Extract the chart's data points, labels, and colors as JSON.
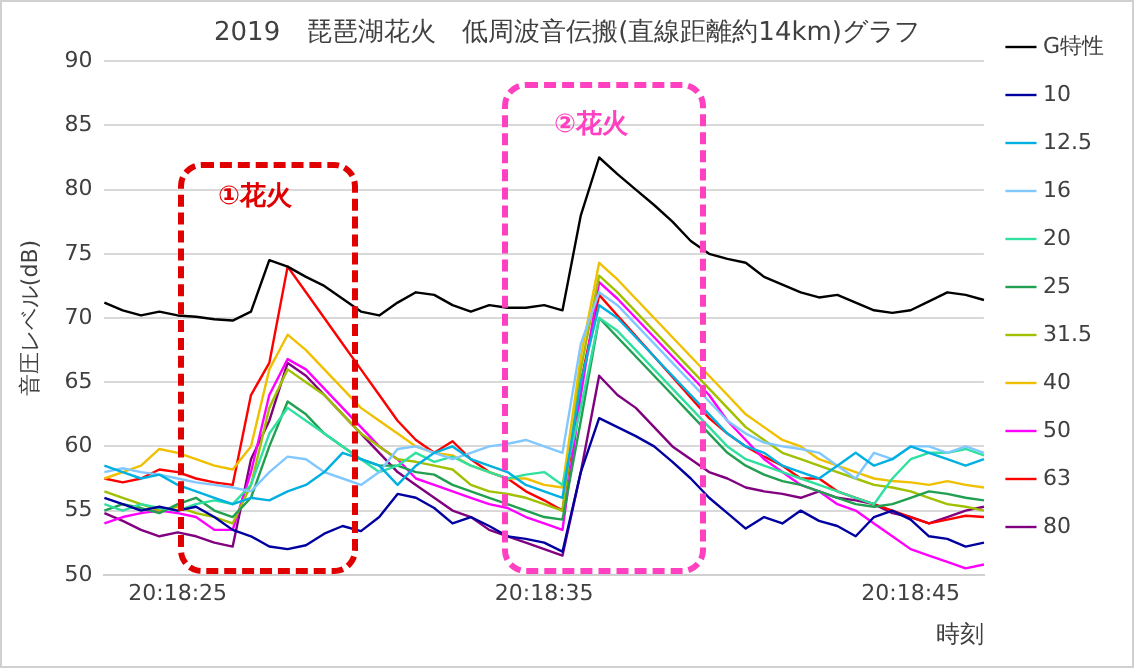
{
  "chart_data": {
    "type": "line",
    "title": "2019　琵琶湖花火　低周波音伝搬(直線距離約14km)グラフ",
    "xlabel": "時刻",
    "ylabel": "音圧レベル(dB)",
    "categories": [
      null,
      null,
      null,
      null,
      "20:18:25",
      null,
      null,
      null,
      null,
      null,
      null,
      null,
      null,
      null,
      null,
      null,
      null,
      null,
      null,
      null,
      null,
      null,
      null,
      null,
      "20:18:35",
      null,
      null,
      null,
      null,
      null,
      null,
      null,
      null,
      null,
      null,
      null,
      null,
      null,
      null,
      null,
      null,
      null,
      null,
      null,
      "20:18:45",
      null,
      null,
      null,
      null
    ],
    "ylim": [
      50,
      90
    ],
    "yticks": [
      50,
      55,
      60,
      65,
      70,
      75,
      80,
      85,
      90
    ],
    "grid": "y",
    "legend": "right",
    "marker": "none",
    "line_style": "solid",
    "annotations": [
      "①花火",
      "②花火"
    ],
    "series": [
      {
        "name": "G特性",
        "color": "#000000",
        "values": [
          71.2,
          70.6,
          70.2,
          70.5,
          70.2,
          70.1,
          69.9,
          69.8,
          70.5,
          74.5,
          74,
          73.2,
          72.5,
          71.5,
          70.5,
          70.2,
          71.2,
          72,
          71.8,
          71,
          70.5,
          71,
          70.8,
          70.8,
          71,
          70.6,
          78,
          82.5,
          81.2,
          80,
          78.8,
          77.5,
          76,
          75,
          74.6,
          74.3,
          73.2,
          72.6,
          72,
          71.6,
          71.8,
          71.2,
          70.6,
          70.4,
          70.6,
          71.3,
          72,
          71.8,
          71.4
        ]
      },
      {
        "name": "10",
        "color": "#0000a0",
        "values": [
          56,
          55.5,
          55,
          55.3,
          55,
          55.3,
          54.5,
          53.5,
          53,
          52.2,
          52,
          52.3,
          53.2,
          53.8,
          53.4,
          54.5,
          56.3,
          56,
          55.2,
          54,
          54.5,
          53.8,
          53,
          52.8,
          52.5,
          51.8,
          58,
          62.2,
          61.5,
          60.8,
          60,
          58.8,
          57.5,
          56,
          54.8,
          53.6,
          54.5,
          54,
          55,
          54.2,
          53.8,
          53,
          54.5,
          55,
          54.3,
          53,
          52.8,
          52.2,
          52.5
        ]
      },
      {
        "name": "12.5",
        "color": "#00b0e0",
        "values": [
          58.5,
          58,
          57.5,
          57.8,
          57,
          56.5,
          56,
          55.5,
          56,
          55.8,
          56.5,
          57,
          58,
          59.5,
          59,
          58.5,
          57,
          58.5,
          59.5,
          60,
          59,
          58.5,
          58,
          57,
          56.5,
          56,
          65,
          71,
          70,
          68.5,
          67,
          65.5,
          64,
          62.5,
          61,
          60,
          59.5,
          58.5,
          58,
          57.5,
          58.5,
          59.5,
          58.5,
          59,
          60,
          59.5,
          59,
          58.5,
          59
        ]
      },
      {
        "name": "16",
        "color": "#80c8ff",
        "values": [
          58,
          58.3,
          58,
          57.8,
          57.5,
          57.2,
          57,
          56.8,
          56.5,
          58,
          59.2,
          59,
          58,
          57.5,
          57,
          58,
          59.8,
          60,
          59.5,
          59,
          59.5,
          60,
          60.2,
          60.5,
          60,
          59.5,
          68,
          72,
          71,
          69.5,
          68,
          66.5,
          65,
          63.5,
          62,
          61,
          60.3,
          60,
          59.8,
          59.5,
          58.5,
          57.5,
          59.5,
          59,
          60,
          60,
          59.5,
          60,
          59.5
        ]
      },
      {
        "name": "20",
        "color": "#30e0a0",
        "values": [
          55.5,
          55,
          55.5,
          55.2,
          55,
          55.5,
          55.8,
          55.5,
          57,
          61,
          63,
          62,
          61,
          60,
          59,
          58,
          58.5,
          59.5,
          58.8,
          59.2,
          58.5,
          58,
          57.5,
          57.8,
          58,
          57,
          63,
          70,
          69,
          67.5,
          66,
          64.5,
          63,
          61.5,
          60,
          59,
          58.5,
          58,
          57.5,
          57,
          56.5,
          56,
          55.5,
          57.5,
          59,
          59.5,
          59.5,
          59.8,
          59.3
        ]
      },
      {
        "name": "25",
        "color": "#20a050",
        "values": [
          55,
          55.5,
          55.2,
          54.8,
          55.5,
          56,
          55,
          54.5,
          56,
          60,
          63.5,
          62.5,
          61,
          60,
          59,
          58.5,
          58.5,
          58,
          57.8,
          57,
          56.5,
          56,
          55.5,
          55,
          54.5,
          54.3,
          62,
          70,
          68.5,
          67,
          65.5,
          64,
          62.5,
          61,
          59.5,
          58.5,
          57.8,
          57.3,
          57,
          56.5,
          56,
          55.5,
          55.3,
          55.5,
          56,
          56.5,
          56.3,
          56,
          55.8
        ]
      },
      {
        "name": "31.5",
        "color": "#a0c000",
        "values": [
          56.5,
          56,
          55.5,
          55,
          55.3,
          54.8,
          54.5,
          54,
          57,
          63,
          66,
          65,
          64,
          62.5,
          61,
          60,
          59,
          58.8,
          58.5,
          58.2,
          57,
          56.5,
          56.3,
          56,
          55.5,
          55,
          66,
          73.3,
          72,
          70.5,
          69,
          67.5,
          66,
          64.5,
          63,
          61.5,
          60.5,
          59.5,
          59,
          58.5,
          58,
          57.5,
          57,
          56.8,
          56.5,
          56,
          55.5,
          55.3,
          55
        ]
      },
      {
        "name": "40",
        "color": "#f0c000",
        "values": [
          57.5,
          58,
          58.5,
          59.8,
          59.5,
          59,
          58.5,
          58.2,
          60,
          66,
          68.7,
          67.5,
          66,
          64.5,
          63,
          62,
          61,
          60,
          59.5,
          59.3,
          58.5,
          58,
          57.5,
          57.5,
          57,
          56.8,
          67,
          74.3,
          73,
          71.5,
          70,
          68.5,
          67,
          65.5,
          64,
          62.5,
          61.5,
          60.5,
          60,
          59,
          58.5,
          58,
          57.5,
          57.3,
          57.2,
          57,
          57.3,
          57,
          56.8
        ]
      },
      {
        "name": "50",
        "color": "#ff00ff",
        "values": [
          54,
          54.5,
          54.8,
          55,
          54.8,
          54.5,
          53.5,
          53.5,
          58,
          64,
          66.8,
          66,
          64.5,
          63,
          61.5,
          60,
          59,
          57.5,
          57,
          56.5,
          56,
          55.5,
          55.2,
          54.5,
          54,
          53.5,
          64,
          72.8,
          71.5,
          70,
          68.5,
          67,
          65.5,
          64,
          62,
          60.5,
          59,
          58,
          57,
          56.5,
          55.5,
          55,
          54,
          53,
          52,
          51.5,
          51,
          50.5,
          50.8
        ]
      },
      {
        "name": "63",
        "color": "#ff0000",
        "values": [
          57.5,
          57.2,
          57.5,
          58.2,
          58,
          57.5,
          57.2,
          57,
          64,
          66.5,
          74,
          72,
          70,
          68,
          66,
          64,
          62,
          60.5,
          59.5,
          60.4,
          59,
          58,
          57.5,
          56.5,
          55.8,
          55,
          65,
          71.8,
          70.2,
          68.6,
          67,
          65.4,
          63.8,
          62.2,
          61,
          60,
          59.2,
          58.5,
          57.5,
          57.5,
          56.5,
          56,
          55.5,
          55,
          54.5,
          54,
          54.3,
          54.6,
          54.5
        ]
      },
      {
        "name": "80",
        "color": "#800080",
        "values": [
          54.8,
          54.2,
          53.5,
          53,
          53.3,
          53,
          52.5,
          52.2,
          59,
          62,
          66.5,
          65.5,
          64,
          62.5,
          61,
          59.5,
          58,
          57,
          56,
          55,
          54.5,
          53.5,
          53,
          52.5,
          52,
          51.5,
          58,
          65.5,
          64,
          63,
          61.5,
          60,
          59,
          58,
          57.5,
          56.8,
          56.5,
          56.3,
          56,
          56.5,
          56,
          55.8,
          55.5,
          54.8,
          54.5,
          54,
          54.5,
          55,
          55.3
        ]
      }
    ]
  }
}
